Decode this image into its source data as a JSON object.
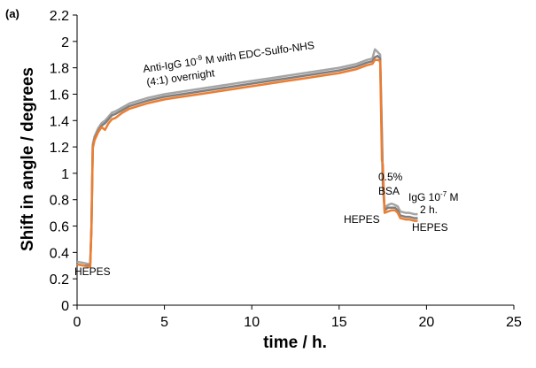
{
  "chart_data": {
    "type": "line",
    "panel_label": "(a)",
    "xlabel": "time / h.",
    "ylabel": "Shift in angle / degrees",
    "xlim": [
      0,
      25
    ],
    "ylim": [
      0,
      2.2
    ],
    "xticks": [
      0,
      5,
      10,
      15,
      20,
      25
    ],
    "yticks": [
      0,
      0.2,
      0.4,
      0.6,
      0.8,
      1,
      1.2,
      1.4,
      1.6,
      1.8,
      2,
      2.2
    ],
    "grid": false,
    "series": [
      {
        "color": "#a5a5a5",
        "x": [
          0,
          0.4,
          0.75,
          0.82,
          0.9,
          1.0,
          1.2,
          1.4,
          1.6,
          1.8,
          2.0,
          2.2,
          2.6,
          3.0,
          3.5,
          4.0,
          5,
          6,
          7,
          8,
          9,
          10,
          11,
          12,
          13,
          14,
          15,
          16,
          16.6,
          16.9,
          17.05,
          17.2,
          17.35,
          17.45,
          17.5,
          17.6,
          17.8,
          18.0,
          18.2,
          18.35,
          18.5,
          18.8,
          19.0,
          19.3,
          19.5
        ],
        "y": [
          0.33,
          0.32,
          0.31,
          0.6,
          1.22,
          1.28,
          1.34,
          1.38,
          1.4,
          1.43,
          1.46,
          1.47,
          1.5,
          1.53,
          1.55,
          1.57,
          1.6,
          1.62,
          1.64,
          1.66,
          1.68,
          1.7,
          1.72,
          1.74,
          1.76,
          1.78,
          1.8,
          1.83,
          1.86,
          1.87,
          1.94,
          1.92,
          1.9,
          1.3,
          0.96,
          0.74,
          0.76,
          0.77,
          0.76,
          0.75,
          0.71,
          0.7,
          0.7,
          0.69,
          0.69
        ]
      },
      {
        "color": "#7f7f7f",
        "x": [
          0,
          0.4,
          0.75,
          0.82,
          0.9,
          1.0,
          1.2,
          1.4,
          1.6,
          1.8,
          2.0,
          2.2,
          2.6,
          3.0,
          3.5,
          4.0,
          5,
          6,
          7,
          8,
          9,
          10,
          11,
          12,
          13,
          14,
          15,
          16,
          16.6,
          16.9,
          17.05,
          17.2,
          17.35,
          17.45,
          17.5,
          17.6,
          17.8,
          18.0,
          18.2,
          18.35,
          18.5,
          18.8,
          19.0,
          19.3,
          19.5
        ],
        "y": [
          0.31,
          0.3,
          0.3,
          0.58,
          1.2,
          1.26,
          1.32,
          1.36,
          1.38,
          1.41,
          1.44,
          1.45,
          1.48,
          1.51,
          1.53,
          1.55,
          1.58,
          1.6,
          1.62,
          1.64,
          1.66,
          1.68,
          1.7,
          1.72,
          1.74,
          1.76,
          1.78,
          1.81,
          1.84,
          1.85,
          1.88,
          1.89,
          1.87,
          1.25,
          0.92,
          0.72,
          0.74,
          0.74,
          0.74,
          0.72,
          0.68,
          0.67,
          0.67,
          0.66,
          0.66
        ]
      },
      {
        "color": "#ed7d31",
        "x": [
          0,
          0.4,
          0.75,
          0.82,
          0.9,
          1.0,
          1.2,
          1.4,
          1.6,
          1.8,
          2.0,
          2.2,
          2.6,
          3.0,
          3.5,
          4.0,
          5,
          6,
          7,
          8,
          9,
          10,
          11,
          12,
          13,
          14,
          15,
          16,
          16.6,
          16.9,
          17.05,
          17.2,
          17.35,
          17.45,
          17.5,
          17.6,
          17.8,
          18.0,
          18.2,
          18.35,
          18.5,
          18.8,
          19.0,
          19.3,
          19.5
        ],
        "y": [
          0.31,
          0.3,
          0.29,
          0.57,
          1.19,
          1.25,
          1.31,
          1.35,
          1.33,
          1.38,
          1.41,
          1.42,
          1.46,
          1.49,
          1.51,
          1.53,
          1.56,
          1.58,
          1.6,
          1.62,
          1.64,
          1.66,
          1.68,
          1.7,
          1.72,
          1.74,
          1.76,
          1.79,
          1.82,
          1.83,
          1.86,
          1.86,
          1.85,
          1.1,
          1.07,
          0.7,
          0.71,
          0.72,
          0.72,
          0.7,
          0.66,
          0.65,
          0.65,
          0.64,
          0.64
        ]
      }
    ],
    "annotations": [
      {
        "name": "annotation-hepes-start",
        "lines": [
          "HEPES"
        ],
        "x": 0,
        "y": 0.22
      },
      {
        "name": "annotation-anti-igg",
        "lines": [
          "Anti-IgG 10",
          "-9",
          " M with EDC-Sulfo-NHS",
          "(4:1) overnight"
        ],
        "x": 3.9,
        "y": 1.81
      },
      {
        "name": "annotation-bsa",
        "lines": [
          "0.5%",
          "BSA"
        ],
        "x": 17.0,
        "y": 0.98
      },
      {
        "name": "annotation-hepes-mid",
        "lines": [
          "HEPES"
        ],
        "x": 15.2,
        "y": 0.62
      },
      {
        "name": "annotation-igg",
        "lines": [
          "IgG 10",
          "-7",
          " M",
          "2 h."
        ],
        "x": 18.9,
        "y": 0.82
      },
      {
        "name": "annotation-hepes-end",
        "lines": [
          "HEPES"
        ],
        "x": 19.2,
        "y": 0.57
      }
    ]
  }
}
